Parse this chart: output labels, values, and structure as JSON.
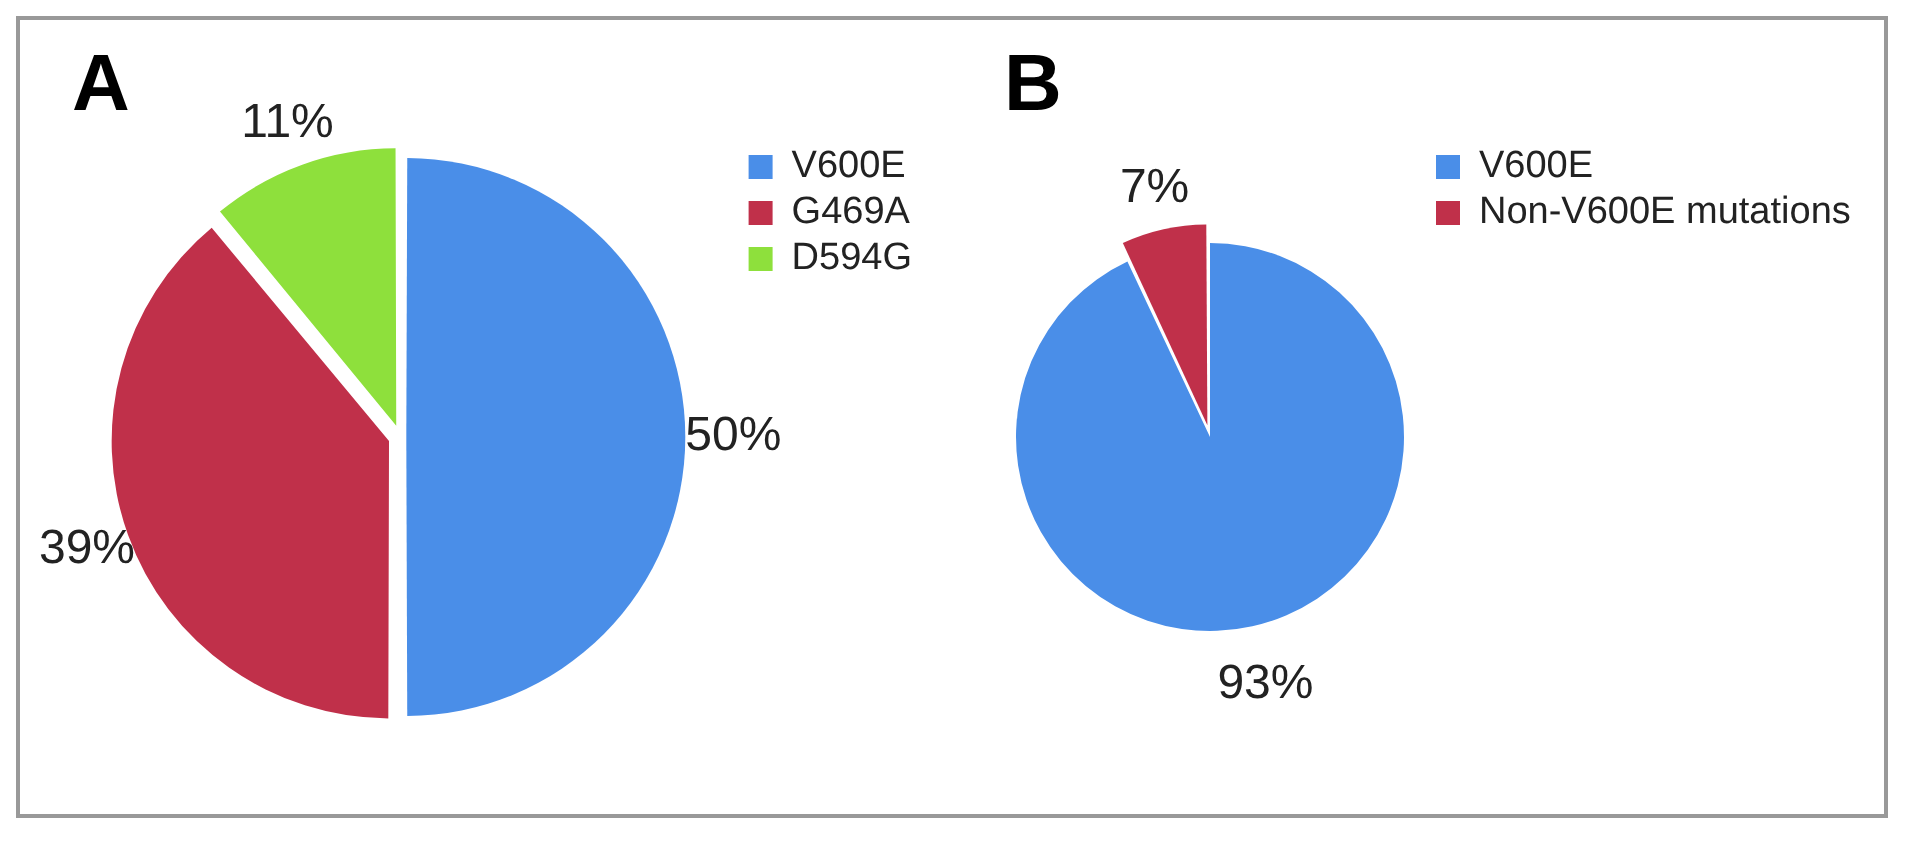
{
  "chart_data": [
    {
      "type": "pie",
      "title": "A",
      "categories": [
        "V600E",
        "G469A",
        "D594G"
      ],
      "values": [
        50,
        39,
        11
      ],
      "colors": [
        "#4a8ee8",
        "#c0304a",
        "#8ee03c"
      ],
      "value_labels": [
        "50%",
        "39%",
        "11%"
      ],
      "legend": "top right"
    },
    {
      "type": "pie",
      "title": "B",
      "categories": [
        "V600E",
        "Non-V600E mutations"
      ],
      "values": [
        93,
        7
      ],
      "colors": [
        "#4a8ee8",
        "#c0304a"
      ],
      "value_labels": [
        "93%",
        "7%"
      ],
      "legend": "top right"
    }
  ]
}
